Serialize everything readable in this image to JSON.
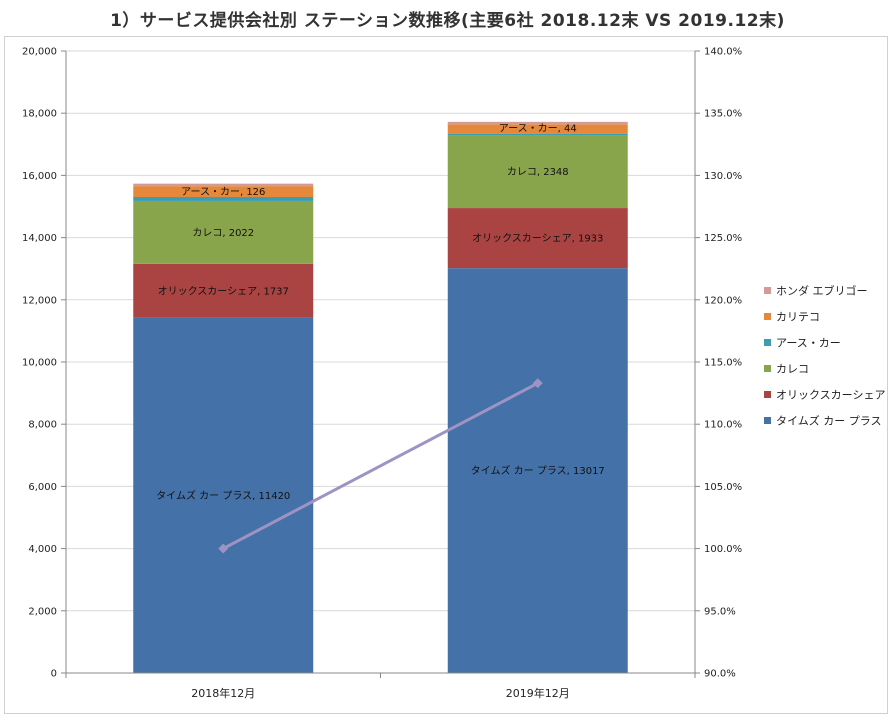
{
  "title": "1）サービス提供会社別 ステーション数推移(主要6社 2018.12末 VS 2019.12末)",
  "chart_data": {
    "type": "bar",
    "stacked": true,
    "categories": [
      "2018年12月",
      "2019年12月"
    ],
    "series": [
      {
        "name": "タイムズ カー プラス",
        "values": [
          11420,
          13017
        ],
        "color": "#4472a8",
        "label_prefix": "タイムズ カー プラス",
        "show_label": [
          true,
          true
        ]
      },
      {
        "name": "オリックスカーシェア",
        "values": [
          1737,
          1933
        ],
        "color": "#a94443",
        "label_prefix": "オリックスカーシェア",
        "show_label": [
          true,
          true
        ]
      },
      {
        "name": "カレコ",
        "values": [
          2022,
          2348
        ],
        "color": "#88a54b",
        "label_prefix": "カレコ",
        "show_label": [
          true,
          true
        ]
      },
      {
        "name": "アース・カー",
        "values": [
          126,
          44
        ],
        "color": "#3a9db0",
        "label_prefix": "アース・カー",
        "show_label": [
          true,
          true
        ]
      },
      {
        "name": "カリテコ",
        "values": [
          350,
          300
        ],
        "color": "#e5883a",
        "label_prefix": "カリテコ",
        "show_label": [
          false,
          false
        ]
      },
      {
        "name": "ホンダ エブリゴー",
        "values": [
          80,
          80
        ],
        "color": "#d49a9a",
        "label_prefix": "ホンダ エブリゴー",
        "show_label": [
          false,
          false
        ]
      }
    ],
    "line_series": {
      "name": "",
      "values": [
        100.0,
        113.3
      ],
      "color": "#9f93c4",
      "axis": "right"
    },
    "left_axis": {
      "min": 0,
      "max": 20000,
      "step": 2000,
      "tick_labels": [
        "0",
        "2,000",
        "4,000",
        "6,000",
        "8,000",
        "10,000",
        "12,000",
        "14,000",
        "16,000",
        "18,000",
        "20,000"
      ]
    },
    "right_axis": {
      "min": 90,
      "max": 140,
      "step": 5,
      "tick_labels": [
        "90.0%",
        "95.0%",
        "100.0%",
        "105.0%",
        "110.0%",
        "115.0%",
        "120.0%",
        "125.0%",
        "130.0%",
        "135.0%",
        "140.0%"
      ]
    },
    "grid": true,
    "legend": "right"
  }
}
